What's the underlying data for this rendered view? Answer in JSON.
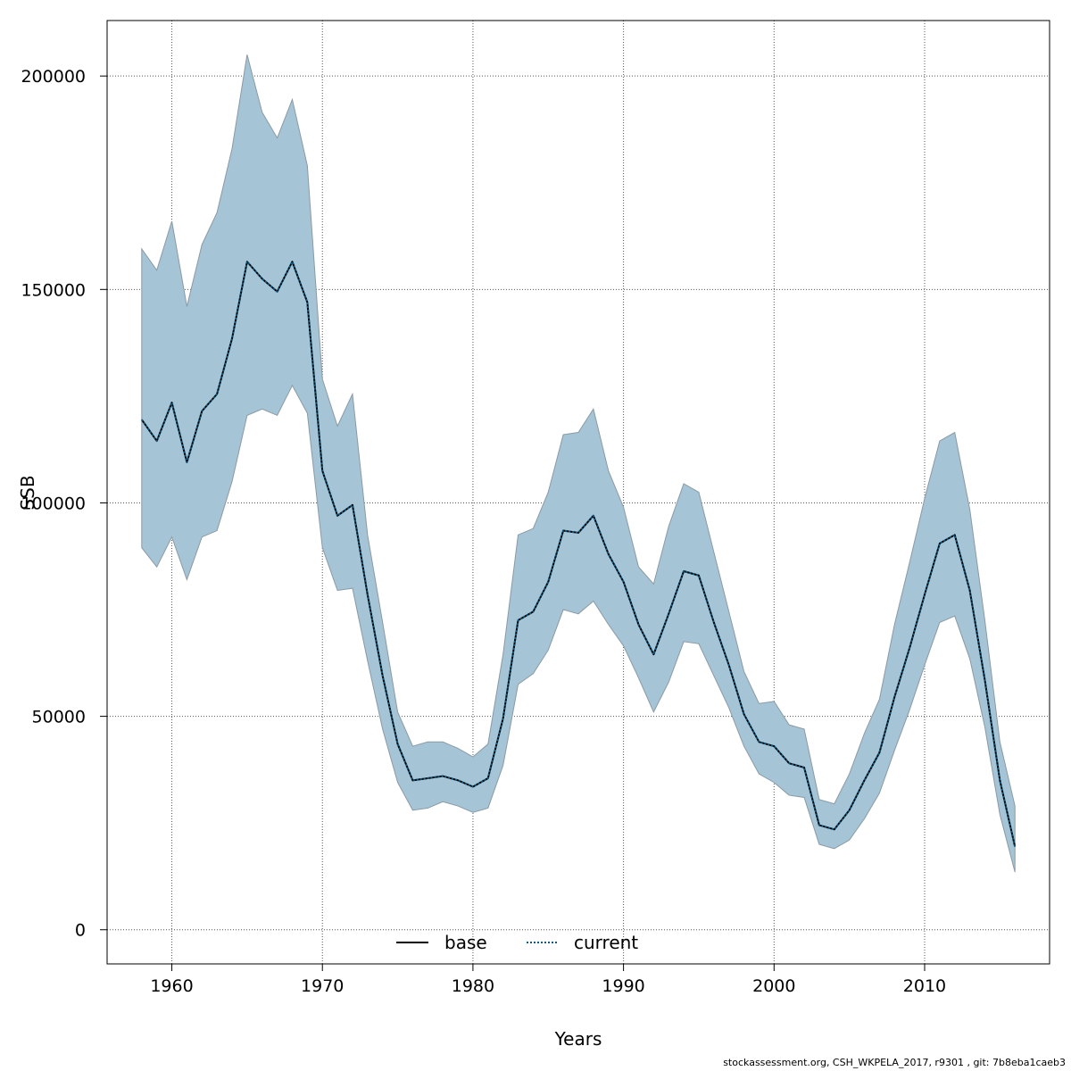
{
  "chart_data": {
    "type": "area",
    "xlabel": "Years",
    "ylabel": "SSB",
    "xlim": [
      1955.7,
      2018.3
    ],
    "ylim": [
      -8000,
      213000
    ],
    "xticks": [
      1960,
      1970,
      1980,
      1990,
      2000,
      2010
    ],
    "yticks": [
      0,
      50000,
      100000,
      150000,
      200000
    ],
    "grid": true,
    "legend_position": "bottom-center",
    "colors": {
      "band": "#a5c4d5",
      "band_stroke": "#8a9aa5",
      "base": "#000000",
      "current": "#0b5b86"
    },
    "x": [
      1958,
      1959,
      1960,
      1961,
      1962,
      1963,
      1964,
      1965,
      1966,
      1967,
      1968,
      1969,
      1970,
      1971,
      1972,
      1973,
      1974,
      1975,
      1976,
      1977,
      1978,
      1979,
      1980,
      1981,
      1982,
      1983,
      1984,
      1985,
      1986,
      1987,
      1988,
      1989,
      1990,
      1991,
      1992,
      1993,
      1994,
      1995,
      1996,
      1997,
      1998,
      1999,
      2000,
      2001,
      2002,
      2003,
      2004,
      2005,
      2006,
      2007,
      2008,
      2009,
      2010,
      2011,
      2012,
      2013,
      2014,
      2015,
      2016
    ],
    "band": {
      "upper": [
        159500,
        154500,
        166000,
        146000,
        160500,
        168000,
        183000,
        205000,
        191500,
        185500,
        194500,
        179000,
        129000,
        118000,
        125500,
        92500,
        72000,
        51000,
        43000,
        44000,
        44000,
        42500,
        40500,
        43500,
        64500,
        92500,
        94000,
        102500,
        116000,
        116500,
        122000,
        107500,
        99000,
        85000,
        81000,
        94500,
        104500,
        102500,
        88500,
        74500,
        60500,
        53000,
        53500,
        48000,
        47000,
        30500,
        29500,
        36500,
        46000,
        54000,
        71500,
        86000,
        101000,
        114500,
        116500,
        98500,
        72500,
        44000,
        29000
      ],
      "lower": [
        89500,
        85000,
        92000,
        82000,
        92000,
        93500,
        105000,
        120500,
        122000,
        120500,
        127500,
        121000,
        89500,
        79500,
        80000,
        63000,
        47000,
        34500,
        28000,
        28500,
        30000,
        29000,
        27500,
        28500,
        38500,
        57500,
        60000,
        65500,
        75000,
        74000,
        77000,
        71500,
        66500,
        59000,
        51000,
        58000,
        67500,
        67000,
        59500,
        52000,
        43000,
        36500,
        34500,
        31500,
        31000,
        20000,
        19000,
        21000,
        26000,
        32000,
        42000,
        51500,
        62000,
        72000,
        73500,
        63500,
        47500,
        27000,
        13500
      ]
    },
    "series": [
      {
        "name": "base",
        "values": [
          119500,
          114500,
          123500,
          109500,
          121500,
          125500,
          138500,
          156500,
          152500,
          149500,
          156500,
          147000,
          107500,
          97000,
          99500,
          78500,
          59500,
          43500,
          35000,
          35500,
          36000,
          35000,
          33500,
          35500,
          49500,
          72500,
          74500,
          81500,
          93500,
          93000,
          97000,
          88000,
          81500,
          71500,
          64500,
          74000,
          84000,
          83000,
          72000,
          62000,
          50500,
          44000,
          43000,
          39000,
          38000,
          24500,
          23500,
          28000,
          35000,
          41500,
          54500,
          66000,
          78500,
          90500,
          92500,
          79500,
          58500,
          35000,
          19500
        ]
      },
      {
        "name": "current",
        "values": [
          119500,
          114500,
          123500,
          109500,
          121500,
          125500,
          138500,
          156500,
          152500,
          149500,
          156500,
          147000,
          107500,
          97000,
          99500,
          78500,
          59500,
          43500,
          35000,
          35500,
          36000,
          35000,
          33500,
          35500,
          49500,
          72500,
          74500,
          81500,
          93500,
          93000,
          97000,
          88000,
          81500,
          71500,
          64500,
          74000,
          84000,
          83000,
          72000,
          62000,
          50500,
          44000,
          43000,
          39000,
          38000,
          24500,
          23500,
          28000,
          35000,
          41500,
          54500,
          66000,
          78500,
          90500,
          92500,
          79500,
          58500,
          35000,
          19500
        ]
      }
    ]
  },
  "footer": "stockassessment.org, CSH_WKPELA_2017, r9301 , git: 7b8eba1caeb3"
}
